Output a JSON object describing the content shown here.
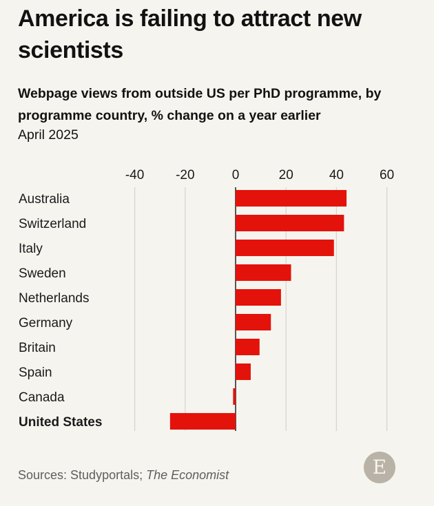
{
  "title": "America is failing to attract new scientists",
  "subtitle": "Webpage views from outside US per PhD programme, by programme country, % change on a year earlier",
  "date": "April 2025",
  "source": {
    "prefix": "Sources: Studyportals; ",
    "publication": "The Economist"
  },
  "logo_letter": "E",
  "colors": {
    "bar": "#e3120b",
    "grid": "#d6d3cc",
    "zero_line": "#121212"
  },
  "chart_data": {
    "type": "bar",
    "orientation": "horizontal",
    "title": "America is failing to attract new scientists",
    "subtitle": "Webpage views from outside US per PhD programme, by programme country, % change on a year earlier",
    "xlabel": "",
    "ylabel": "",
    "xlim": [
      -40,
      60
    ],
    "ticks": [
      -40,
      -20,
      0,
      20,
      40,
      60
    ],
    "tick_labels": [
      "-40",
      "-20",
      "0",
      "20",
      "40",
      "60"
    ],
    "categories": [
      "Australia",
      "Switzerland",
      "Italy",
      "Sweden",
      "Netherlands",
      "Germany",
      "Britain",
      "Spain",
      "Canada",
      "United States"
    ],
    "values": [
      44,
      43,
      39,
      22,
      18,
      14,
      9.5,
      6,
      -1,
      -26
    ],
    "highlight": "United States"
  }
}
